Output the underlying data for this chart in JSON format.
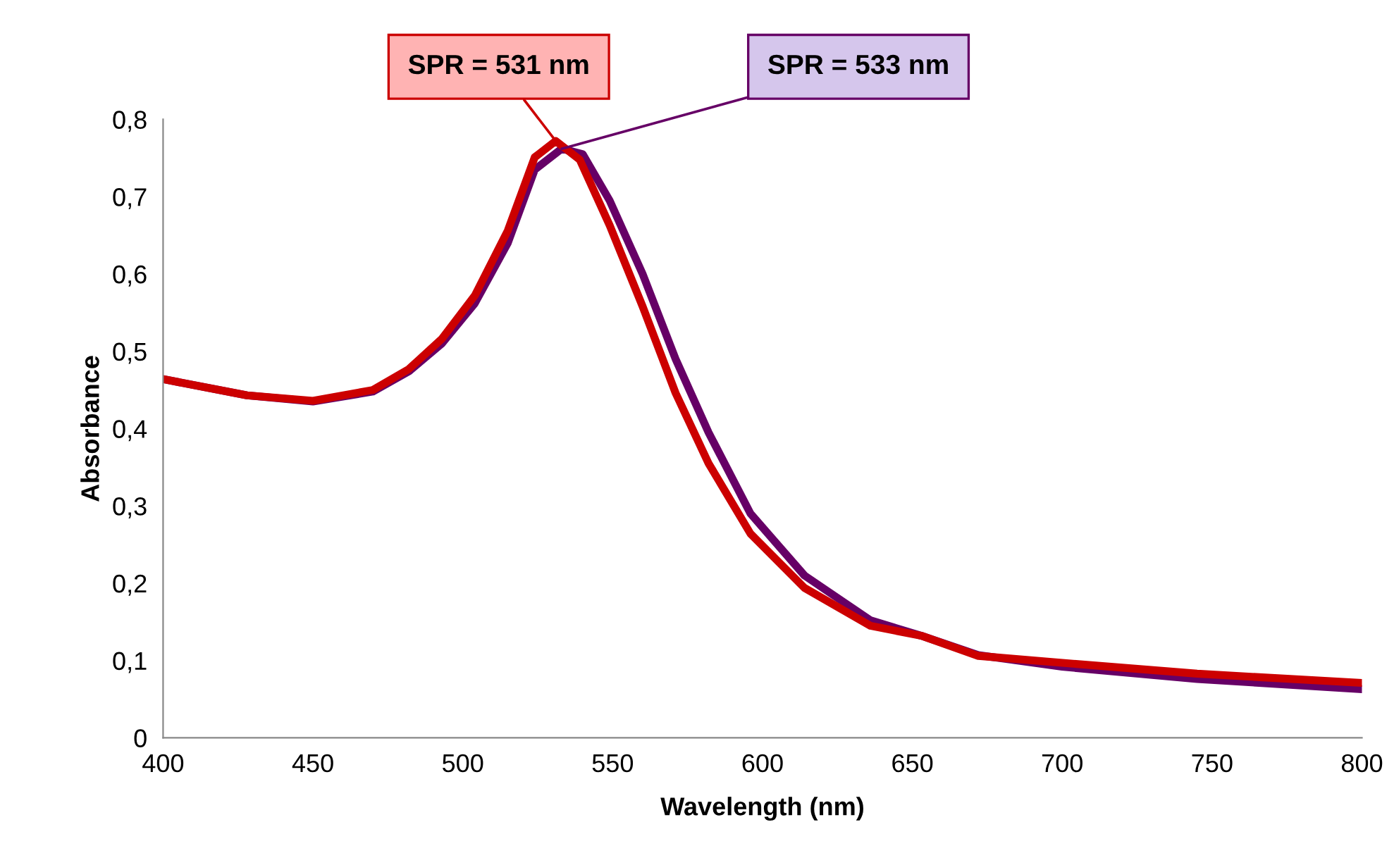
{
  "chart_data": {
    "type": "line",
    "xlabel": "Wavelength (nm)",
    "ylabel": "Absorbance",
    "xlim": [
      400,
      800
    ],
    "ylim": [
      0,
      0.8
    ],
    "xticks": [
      400,
      450,
      500,
      550,
      600,
      650,
      700,
      750,
      800
    ],
    "yticks": [
      0,
      {
        "value": 0.1,
        "label": "0,1"
      },
      {
        "value": 0.2,
        "label": "0,2"
      },
      {
        "value": 0.3,
        "label": "0,3"
      },
      {
        "value": 0.4,
        "label": "0,4"
      },
      {
        "value": 0.5,
        "label": "0,5"
      },
      {
        "value": 0.6,
        "label": "0,6"
      },
      {
        "value": 0.7,
        "label": "0,7"
      },
      {
        "value": 0.8,
        "label": "0,8"
      }
    ],
    "grid": false,
    "legend": false,
    "marker": "none",
    "line_style": "solid",
    "series": [
      {
        "color": "#660066",
        "x": [
          400,
          428,
          450,
          470,
          482,
          493,
          504,
          515,
          524,
          533,
          540,
          549,
          560,
          571,
          582,
          596,
          614,
          636,
          653,
          672,
          700,
          745,
          800
        ],
        "values": [
          0.464,
          0.443,
          0.435,
          0.448,
          0.474,
          0.51,
          0.562,
          0.64,
          0.735,
          0.762,
          0.755,
          0.695,
          0.6,
          0.49,
          0.395,
          0.29,
          0.21,
          0.152,
          0.132,
          0.107,
          0.092,
          0.076,
          0.063
        ]
      },
      {
        "color": "#cc0000",
        "x": [
          400,
          428,
          450,
          470,
          482,
          493,
          504,
          515,
          524,
          531,
          539,
          549,
          560,
          571,
          582,
          596,
          614,
          636,
          653,
          672,
          700,
          745,
          800
        ],
        "values": [
          0.464,
          0.443,
          0.436,
          0.45,
          0.477,
          0.516,
          0.572,
          0.656,
          0.751,
          0.772,
          0.748,
          0.663,
          0.558,
          0.446,
          0.355,
          0.264,
          0.194,
          0.145,
          0.132,
          0.106,
          0.097,
          0.083,
          0.071
        ]
      }
    ],
    "annotations": [
      {
        "text": "SPR = 531 nm",
        "x": 531,
        "y": 0.772
      },
      {
        "text": "SPR = 533 nm",
        "x": 533,
        "y": 0.762
      }
    ]
  }
}
